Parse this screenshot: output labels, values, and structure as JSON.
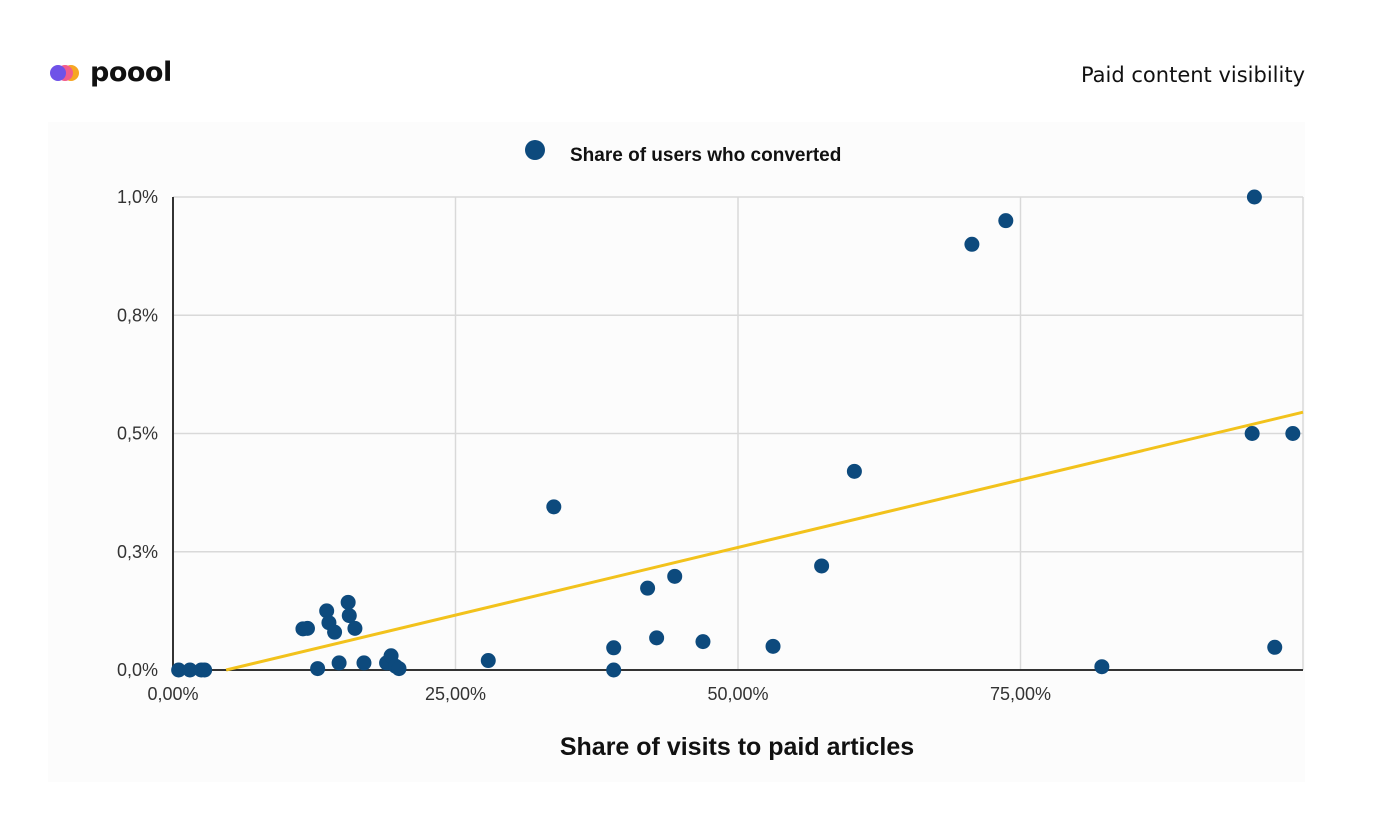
{
  "header": {
    "brand": "poool",
    "page_title": "Paid content visibility"
  },
  "colors": {
    "points": "#0d4a7d",
    "trendline": "#f2c21c",
    "grid": "#d9d9d9",
    "axis": "#333333"
  },
  "chart_data": {
    "type": "scatter",
    "title": "",
    "xlabel": "Share of visits to paid articles",
    "ylabel": "",
    "xlim": [
      0,
      100
    ],
    "ylim": [
      0,
      1.0
    ],
    "x_ticks": [
      0,
      25,
      50,
      75
    ],
    "x_tick_labels": [
      "0,00%",
      "25,00%",
      "50,00%",
      "75,00%"
    ],
    "y_ticks": [
      0,
      0.25,
      0.5,
      0.75,
      1.0
    ],
    "y_tick_labels": [
      "0,0%",
      "0,3%",
      "0,5%",
      "0,8%",
      "1,0%"
    ],
    "grid": true,
    "legend_position": "top-center",
    "series": [
      {
        "name": "Share of users who converted",
        "points": [
          [
            0.5,
            0.0
          ],
          [
            1.5,
            0.0
          ],
          [
            2.5,
            0.0
          ],
          [
            2.8,
            0.0
          ],
          [
            11.5,
            0.087
          ],
          [
            11.9,
            0.088
          ],
          [
            13.6,
            0.125
          ],
          [
            13.8,
            0.1
          ],
          [
            14.3,
            0.08
          ],
          [
            15.5,
            0.143
          ],
          [
            15.6,
            0.115
          ],
          [
            16.1,
            0.088
          ],
          [
            12.8,
            0.003
          ],
          [
            14.7,
            0.015
          ],
          [
            16.9,
            0.015
          ],
          [
            18.9,
            0.015
          ],
          [
            19.3,
            0.03
          ],
          [
            19.7,
            0.008
          ],
          [
            20.0,
            0.003
          ],
          [
            27.9,
            0.02
          ],
          [
            33.7,
            0.345
          ],
          [
            39.0,
            0.047
          ],
          [
            39.0,
            0.0
          ],
          [
            42.0,
            0.173
          ],
          [
            42.8,
            0.068
          ],
          [
            44.4,
            0.198
          ],
          [
            46.9,
            0.06
          ],
          [
            53.1,
            0.05
          ],
          [
            57.4,
            0.22
          ],
          [
            60.3,
            0.42
          ],
          [
            70.7,
            0.9
          ],
          [
            73.7,
            0.95
          ],
          [
            82.2,
            0.007
          ],
          [
            95.7,
            1.0
          ],
          [
            95.5,
            0.5
          ],
          [
            97.5,
            0.048
          ],
          [
            99.1,
            0.5
          ]
        ]
      }
    ],
    "trendline": {
      "x": [
        4.7,
        100
      ],
      "y": [
        0.0,
        0.545
      ]
    }
  }
}
